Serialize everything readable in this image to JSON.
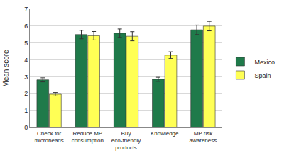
{
  "chart_data": {
    "type": "bar",
    "categories": [
      "Check for microbeads",
      "Reduce MP consumption",
      "Buy eco-friendly products",
      "Knowledge",
      "MP risk awareness"
    ],
    "series": [
      {
        "name": "Mexico",
        "color": "#1f7a4a",
        "values": [
          2.82,
          5.5,
          5.58,
          2.85,
          5.78
        ],
        "errors": [
          0.12,
          0.25,
          0.25,
          0.12,
          0.28
        ]
      },
      {
        "name": "Spain",
        "color": "#ffff55",
        "values": [
          1.97,
          5.43,
          5.4,
          4.28,
          6.0
        ],
        "errors": [
          0.1,
          0.25,
          0.27,
          0.2,
          0.28
        ]
      }
    ],
    "y_label": "Mean score",
    "ylim": [
      0,
      7
    ],
    "yticks": [
      0,
      1,
      2,
      3,
      4,
      5,
      6,
      7
    ],
    "grid": true,
    "legend": "right"
  }
}
